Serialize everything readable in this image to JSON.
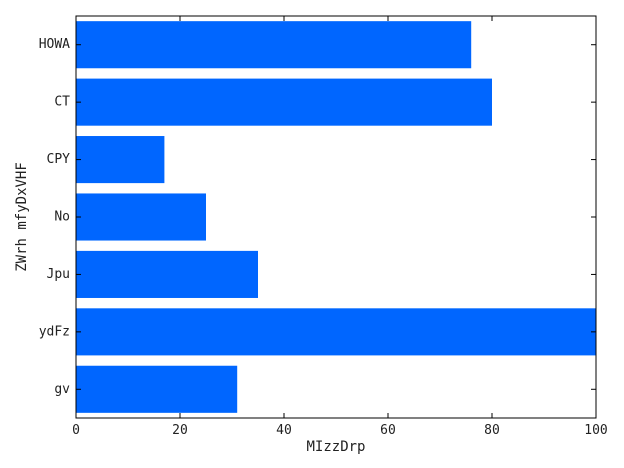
{
  "chart_data": {
    "type": "bar",
    "orientation": "horizontal",
    "title": "",
    "xlabel": "MIzzDrp",
    "ylabel": "ZWrh mfyDxVHF",
    "categories": [
      "HOWA",
      "CT",
      "CPY",
      "No",
      "Jpu",
      "ydFz",
      "gv"
    ],
    "values": [
      76,
      80,
      17,
      25,
      35,
      100,
      31
    ],
    "xlim": [
      0,
      100
    ],
    "xticks": [
      "0",
      "20",
      "40",
      "60",
      "80",
      "100"
    ],
    "grid": false,
    "legend": "none",
    "bar_color": "#0066ff"
  }
}
